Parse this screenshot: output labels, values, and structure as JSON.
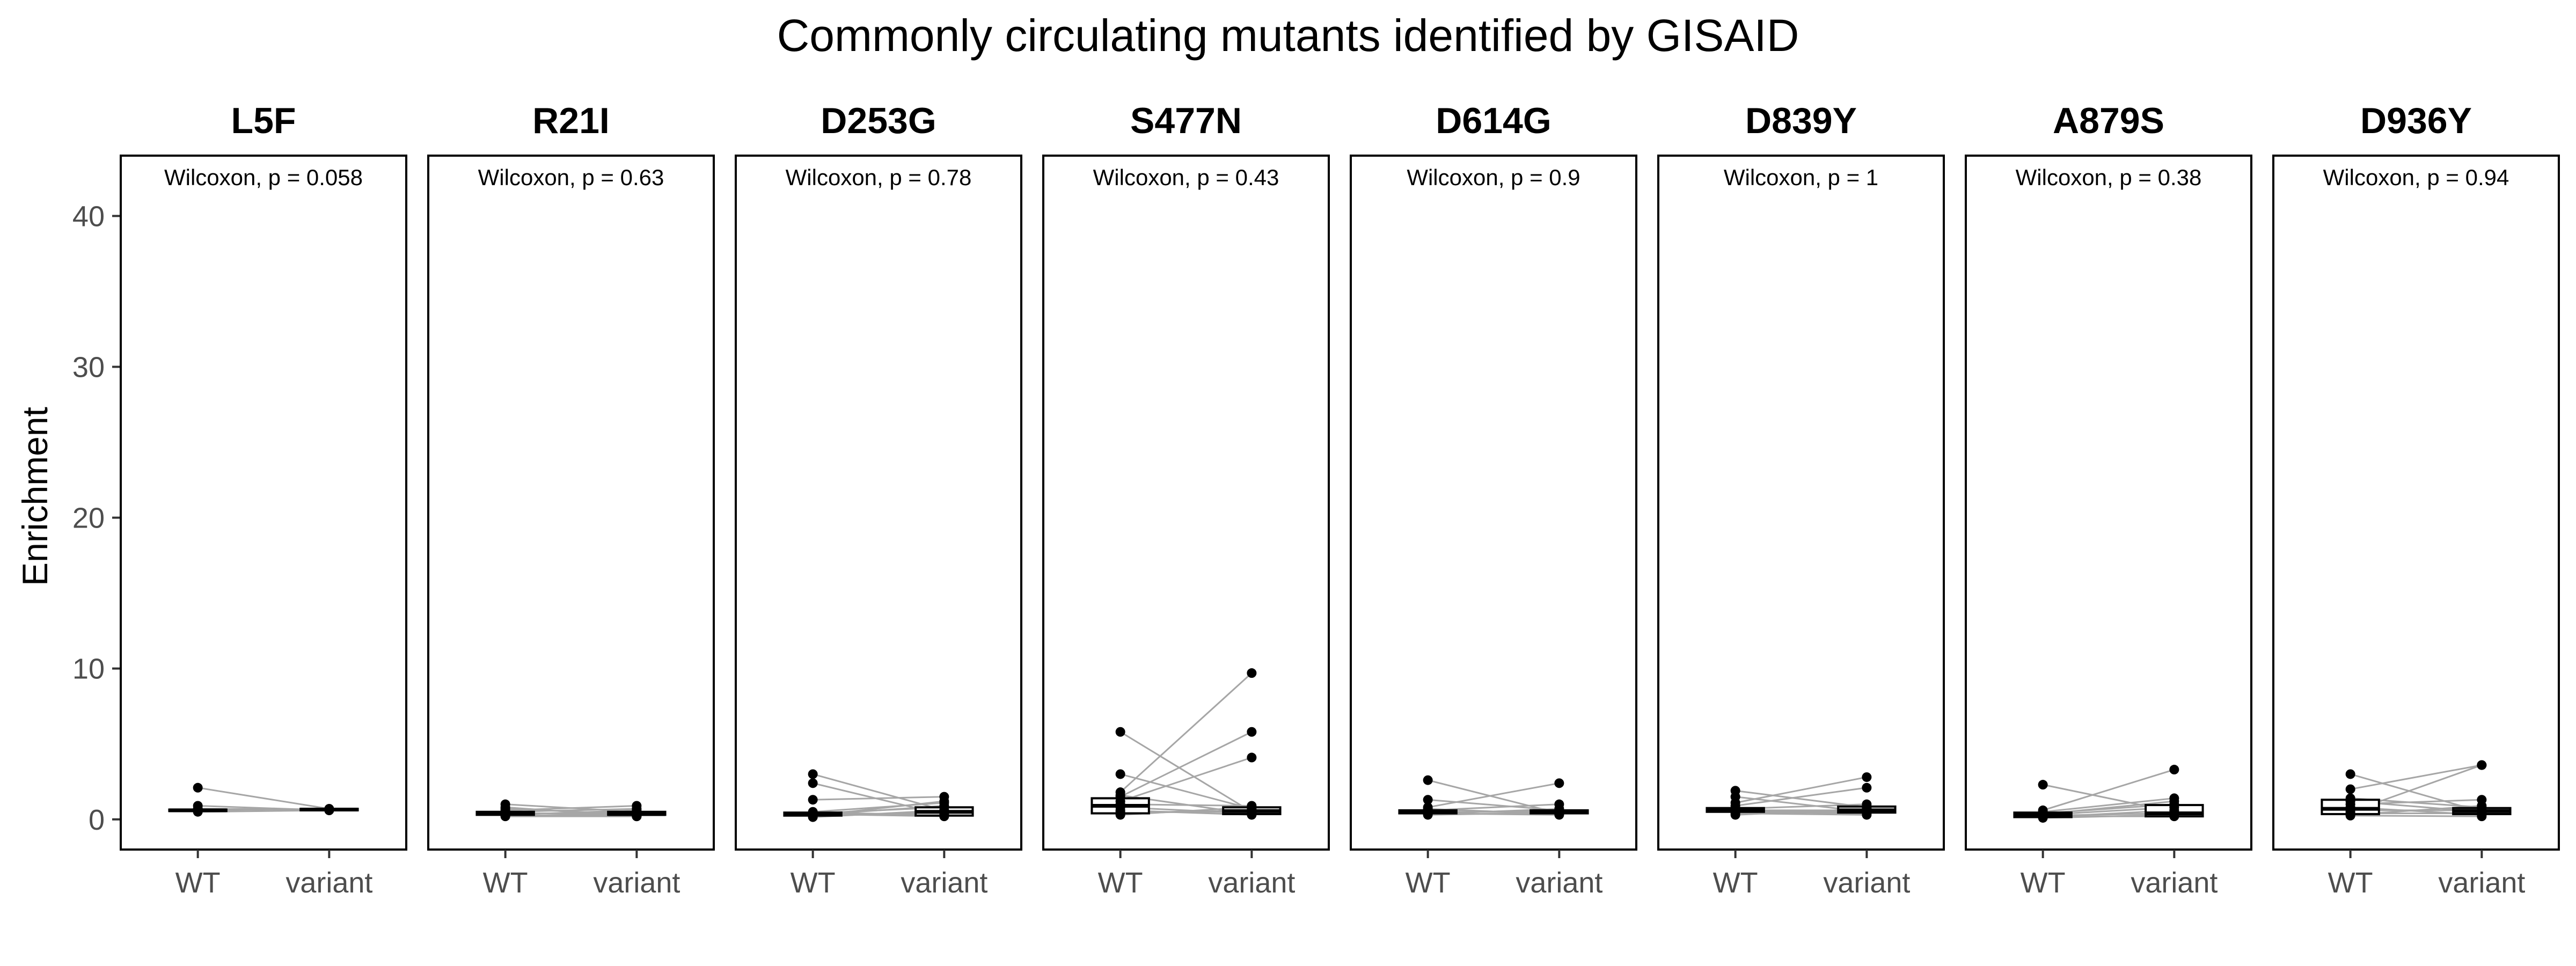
{
  "chart_data": {
    "type": "boxplot",
    "title": "Commonly circulating mutants identified by GISAID",
    "ylabel": "Enrichment",
    "xlabel": "",
    "ylim": [
      -2,
      44
    ],
    "yticks": [
      0,
      10,
      20,
      30,
      40
    ],
    "categories": [
      "WT",
      "variant"
    ],
    "colors": {
      "points": "#000000",
      "lines": "#a6a6a6",
      "box": "#000000"
    },
    "facets": [
      {
        "name": "L5F",
        "annotation": "Wilcoxon, p = 0.058",
        "box": {
          "WT": [
            0.5,
            0.55,
            0.6,
            0.65,
            0.7
          ],
          "variant": [
            0.55,
            0.6,
            0.65,
            0.7,
            0.75
          ]
        },
        "pairs": [
          [
            2.1,
            0.7
          ],
          [
            0.9,
            0.6
          ],
          [
            0.6,
            0.7
          ],
          [
            0.5,
            0.6
          ],
          [
            0.7,
            0.65
          ]
        ]
      },
      {
        "name": "R21I",
        "annotation": "Wilcoxon, p = 0.63",
        "box": {
          "WT": [
            0.2,
            0.3,
            0.4,
            0.5,
            0.7
          ],
          "variant": [
            0.2,
            0.3,
            0.35,
            0.5,
            0.6
          ]
        },
        "pairs": [
          [
            1.0,
            0.5
          ],
          [
            0.8,
            0.2
          ],
          [
            0.6,
            0.9
          ],
          [
            0.5,
            0.7
          ],
          [
            0.4,
            0.4
          ],
          [
            0.3,
            0.6
          ],
          [
            0.25,
            0.3
          ],
          [
            0.2,
            0.2
          ],
          [
            0.7,
            0.35
          ],
          [
            0.45,
            0.25
          ]
        ]
      },
      {
        "name": "D253G",
        "annotation": "Wilcoxon, p = 0.78",
        "box": {
          "WT": [
            0.1,
            0.25,
            0.35,
            0.45,
            0.6
          ],
          "variant": [
            0.1,
            0.25,
            0.5,
            0.8,
            1.1
          ]
        },
        "pairs": [
          [
            3.0,
            0.6
          ],
          [
            2.4,
            0.3
          ],
          [
            1.3,
            1.5
          ],
          [
            0.5,
            1.1
          ],
          [
            0.3,
            0.9
          ],
          [
            0.35,
            0.2
          ],
          [
            0.2,
            0.5
          ],
          [
            0.4,
            0.8
          ],
          [
            0.25,
            1.2
          ],
          [
            0.3,
            0.4
          ],
          [
            0.45,
            0.3
          ],
          [
            0.15,
            0.6
          ]
        ]
      },
      {
        "name": "S477N",
        "annotation": "Wilcoxon, p = 0.43",
        "box": {
          "WT": [
            0.2,
            0.4,
            0.9,
            1.4,
            2.0
          ],
          "variant": [
            0.2,
            0.35,
            0.55,
            0.8,
            1.1
          ]
        },
        "pairs": [
          [
            5.8,
            0.5
          ],
          [
            3.0,
            0.7
          ],
          [
            1.8,
            9.7
          ],
          [
            1.5,
            5.8
          ],
          [
            1.2,
            4.1
          ],
          [
            1.0,
            0.9
          ],
          [
            0.8,
            0.4
          ],
          [
            0.6,
            0.3
          ],
          [
            0.4,
            0.6
          ],
          [
            0.3,
            0.8
          ],
          [
            0.5,
            0.5
          ],
          [
            1.6,
            0.35
          ]
        ]
      },
      {
        "name": "D614G",
        "annotation": "Wilcoxon, p = 0.9",
        "box": {
          "WT": [
            0.3,
            0.4,
            0.5,
            0.6,
            0.8
          ],
          "variant": [
            0.3,
            0.4,
            0.5,
            0.6,
            0.7
          ]
        },
        "pairs": [
          [
            2.6,
            0.4
          ],
          [
            1.3,
            0.6
          ],
          [
            0.8,
            2.4
          ],
          [
            0.6,
            1.0
          ],
          [
            0.5,
            0.5
          ],
          [
            0.4,
            0.3
          ],
          [
            0.35,
            0.7
          ],
          [
            0.3,
            0.45
          ],
          [
            0.7,
            0.35
          ],
          [
            0.45,
            0.55
          ]
        ]
      },
      {
        "name": "D839Y",
        "annotation": "Wilcoxon, p = 1",
        "box": {
          "WT": [
            0.3,
            0.5,
            0.6,
            0.75,
            0.9
          ],
          "variant": [
            0.3,
            0.45,
            0.6,
            0.85,
            1.1
          ]
        },
        "pairs": [
          [
            1.9,
            0.8
          ],
          [
            1.5,
            0.5
          ],
          [
            1.1,
            2.8
          ],
          [
            0.9,
            2.1
          ],
          [
            0.7,
            1.0
          ],
          [
            0.6,
            0.6
          ],
          [
            0.5,
            0.4
          ],
          [
            0.4,
            0.3
          ],
          [
            0.3,
            0.7
          ],
          [
            0.55,
            0.5
          ]
        ]
      },
      {
        "name": "A879S",
        "annotation": "Wilcoxon, p = 0.38",
        "box": {
          "WT": [
            0.05,
            0.15,
            0.3,
            0.45,
            0.6
          ],
          "variant": [
            0.1,
            0.2,
            0.4,
            0.95,
            1.4
          ]
        },
        "pairs": [
          [
            2.3,
            0.5
          ],
          [
            0.6,
            3.3
          ],
          [
            0.5,
            1.4
          ],
          [
            0.4,
            1.0
          ],
          [
            0.3,
            0.8
          ],
          [
            0.2,
            0.2
          ],
          [
            0.15,
            0.6
          ],
          [
            0.1,
            0.3
          ],
          [
            0.35,
            1.2
          ],
          [
            0.25,
            0.4
          ]
        ]
      },
      {
        "name": "D936Y",
        "annotation": "Wilcoxon, p = 0.94",
        "box": {
          "WT": [
            0.2,
            0.35,
            0.7,
            1.3,
            2.0
          ],
          "variant": [
            0.2,
            0.35,
            0.55,
            0.75,
            1.2
          ]
        },
        "pairs": [
          [
            3.0,
            0.5
          ],
          [
            2.0,
            3.6
          ],
          [
            1.4,
            0.8
          ],
          [
            1.0,
            1.3
          ],
          [
            0.8,
            0.3
          ],
          [
            0.6,
            0.6
          ],
          [
            0.4,
            0.4
          ],
          [
            0.3,
            0.9
          ],
          [
            0.25,
            0.2
          ],
          [
            1.2,
            0.5
          ],
          [
            0.5,
            3.6
          ]
        ]
      }
    ]
  }
}
